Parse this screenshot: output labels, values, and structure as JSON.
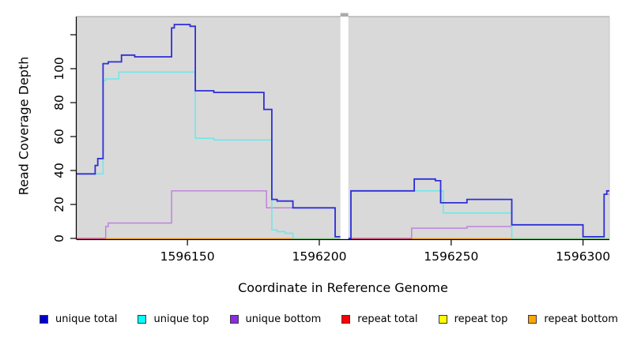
{
  "chart_data": {
    "type": "line",
    "subtype": "step-coverage-plot",
    "title": "",
    "xlabel": "Coordinate in Reference Genome",
    "ylabel": "Read Coverage Depth",
    "xlim": [
      1596108,
      1596310
    ],
    "ylim": [
      0,
      131
    ],
    "grid": "off",
    "plot_background": "#d9d9d9",
    "axis_break": {
      "from": 1596208,
      "to": 1596211
    },
    "x_ticks": [
      {
        "value": 1596150,
        "label": "1596150"
      },
      {
        "value": 1596200,
        "label": "1596200"
      },
      {
        "value": 1596250,
        "label": "1596250"
      },
      {
        "value": 1596300,
        "label": "1596300"
      }
    ],
    "y_ticks": [
      {
        "value": 0,
        "label": "0"
      },
      {
        "value": 20,
        "label": "20"
      },
      {
        "value": 40,
        "label": "40"
      },
      {
        "value": 60,
        "label": "60"
      },
      {
        "value": 80,
        "label": "80"
      },
      {
        "value": 100,
        "label": "100"
      },
      {
        "value": 120,
        "label": ""
      }
    ],
    "regions": [
      [
        1596108,
        1596208
      ],
      [
        1596211,
        1596310
      ]
    ],
    "series": [
      {
        "name": "unique total",
        "line_color": "#2e2ed8",
        "width": 1.8,
        "steps": [
          [
            [
              1596108,
              38
            ],
            [
              1596115,
              43
            ],
            [
              1596116,
              47
            ],
            [
              1596118,
              103
            ],
            [
              1596120,
              104
            ],
            [
              1596125,
              108
            ],
            [
              1596130,
              107
            ],
            [
              1596144,
              124
            ],
            [
              1596145,
              126
            ],
            [
              1596151,
              125
            ],
            [
              1596153,
              87
            ],
            [
              1596160,
              86
            ],
            [
              1596179,
              76
            ],
            [
              1596182,
              23
            ],
            [
              1596184,
              22
            ],
            [
              1596190,
              18
            ],
            [
              1596206,
              1
            ]
          ],
          [
            [
              1596211,
              0
            ],
            [
              1596212,
              28
            ],
            [
              1596236,
              35
            ],
            [
              1596244,
              34
            ],
            [
              1596246,
              21
            ],
            [
              1596256,
              23
            ],
            [
              1596273,
              8
            ],
            [
              1596300,
              1
            ],
            [
              1596308,
              26
            ],
            [
              1596309,
              28
            ]
          ]
        ]
      },
      {
        "name": "unique top",
        "line_color": "#70e7ea",
        "width": 1.6,
        "steps": [
          [
            [
              1596108,
              38
            ],
            [
              1596118,
              93
            ],
            [
              1596119,
              94
            ],
            [
              1596124,
              98
            ],
            [
              1596153,
              59
            ],
            [
              1596160,
              58
            ],
            [
              1596182,
              5
            ],
            [
              1596184,
              4
            ],
            [
              1596187,
              3
            ],
            [
              1596190,
              0
            ]
          ],
          [
            [
              1596211,
              0
            ],
            [
              1596212,
              28
            ],
            [
              1596247,
              15
            ],
            [
              1596273,
              0
            ]
          ]
        ]
      },
      {
        "name": "unique bottom",
        "line_color": "#bb7edc",
        "width": 1.4,
        "steps": [
          [
            [
              1596108,
              0
            ],
            [
              1596119,
              7
            ],
            [
              1596120,
              9
            ],
            [
              1596144,
              28
            ],
            [
              1596180,
              18
            ],
            [
              1596206,
              1
            ]
          ],
          [
            [
              1596211,
              0
            ],
            [
              1596235,
              6
            ],
            [
              1596256,
              7
            ],
            [
              1596273,
              8
            ],
            [
              1596300,
              1
            ],
            [
              1596308,
              26
            ]
          ]
        ]
      },
      {
        "name": "repeat total",
        "line_color": "#ff0000",
        "width": 1.4,
        "steps": [
          [
            [
              1596108,
              0
            ]
          ],
          [
            [
              1596211,
              0
            ]
          ]
        ]
      },
      {
        "name": "repeat top",
        "line_color": "#ffff00",
        "width": 1.4,
        "steps": [
          [
            [
              1596108,
              0
            ]
          ],
          [
            [
              1596211,
              0
            ]
          ]
        ]
      },
      {
        "name": "repeat bottom",
        "line_color": "#ffa500",
        "width": 1.4,
        "steps": [
          [
            [
              1596108,
              0
            ]
          ],
          [
            [
              1596211,
              0
            ]
          ]
        ]
      }
    ],
    "baseline_segments": [
      {
        "from": 1596108,
        "to": 1596119,
        "color": "#e0607c"
      },
      {
        "from": 1596119,
        "to": 1596190,
        "color": "#ffa41e"
      },
      {
        "from": 1596190,
        "to": 1596208,
        "color": "#8fd690"
      },
      {
        "from": 1596211,
        "to": 1596235,
        "color": "#e0607c"
      },
      {
        "from": 1596235,
        "to": 1596273,
        "color": "#ffa41e"
      },
      {
        "from": 1596273,
        "to": 1596310,
        "color": "#8fd690"
      }
    ],
    "legend": {
      "position": "bottom",
      "items": [
        {
          "label": "unique total",
          "fill": "#0000cd"
        },
        {
          "label": "unique top",
          "fill": "#00ffff"
        },
        {
          "label": "unique bottom",
          "fill": "#8b2be2"
        },
        {
          "label": "repeat total",
          "fill": "#ff0000"
        },
        {
          "label": "repeat top",
          "fill": "#ffff00"
        },
        {
          "label": "repeat bottom",
          "fill": "#ffa500"
        }
      ]
    }
  }
}
